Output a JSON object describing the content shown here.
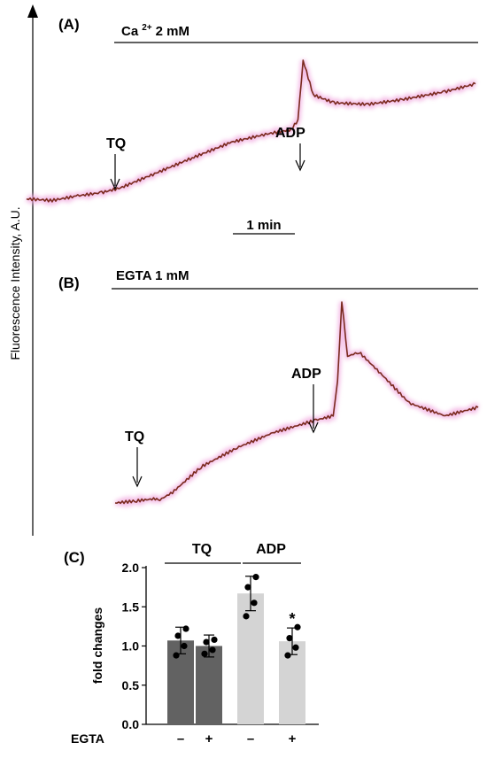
{
  "colors": {
    "trace": "#7a2a1e",
    "trace_glow": "#f1a9df",
    "bar_tq": "#626262",
    "bar_adp": "#d4d4d4",
    "axis": "#000000"
  },
  "figure": {
    "y_axis_label": "Fluorescence Intensity, A.U.",
    "panel_a": {
      "label": "(A)",
      "condition": "Ca",
      "condition_sup": "2+",
      "condition_unit": "2 mM",
      "tq_label": "TQ",
      "adp_label": "ADP",
      "scale_label": "1 min"
    },
    "panel_b": {
      "label": "(B)",
      "condition": "EGTA 1 mM",
      "tq_label": "TQ",
      "adp_label": "ADP"
    },
    "panel_c": {
      "label": "(C)",
      "group_tq": "TQ",
      "group_adp": "ADP",
      "egta_label": "EGTA",
      "significance": "*"
    }
  },
  "chart_data": [
    {
      "type": "line",
      "panel": "A",
      "title": "Ca 2+ 2 mM",
      "xlabel": "",
      "ylabel": "Fluorescence Intensity, A.U.",
      "scale_bar": "1 min",
      "annotations": [
        "TQ",
        "ADP"
      ],
      "series": [
        {
          "x": [
            0,
            0.15,
            0.3,
            0.44,
            0.55,
            0.75,
            0.97,
            1.2,
            1.4,
            1.55,
            1.59,
            1.62,
            1.68,
            1.8,
            2.0,
            2.2,
            2.45,
            2.63
          ],
          "y": [
            0.12,
            0.11,
            0.14,
            0.16,
            0.19,
            0.28,
            0.38,
            0.48,
            0.53,
            0.56,
            0.62,
            1.0,
            0.78,
            0.73,
            0.72,
            0.75,
            0.8,
            0.85
          ]
        }
      ]
    },
    {
      "type": "line",
      "panel": "B",
      "title": "EGTA 1 mM",
      "xlabel": "",
      "ylabel": "Fluorescence Intensity, A.U.",
      "annotations": [
        "TQ",
        "ADP"
      ],
      "series": [
        {
          "x": [
            0,
            0.15,
            0.28,
            0.3,
            0.4,
            0.6,
            0.85,
            1.1,
            1.4,
            1.52,
            1.55,
            1.58,
            1.62,
            1.7,
            1.85,
            2.05,
            2.3,
            2.53
          ],
          "y": [
            0.05,
            0.06,
            0.07,
            0.06,
            0.1,
            0.22,
            0.31,
            0.38,
            0.44,
            0.46,
            0.62,
            1.0,
            0.74,
            0.76,
            0.66,
            0.52,
            0.46,
            0.5
          ]
        }
      ]
    },
    {
      "type": "bar",
      "panel": "C",
      "categories": [
        "–",
        "+",
        "–",
        "+"
      ],
      "groups": [
        "TQ",
        "TQ",
        "ADP",
        "ADP"
      ],
      "xlabel": "EGTA",
      "ylabel": "fold changes",
      "ylim": [
        0,
        2.0
      ],
      "yticks": [
        "0.0",
        "0.5",
        "1.0",
        "1.5",
        "2.0"
      ],
      "values": [
        1.07,
        1.0,
        1.67,
        1.06
      ],
      "errors": [
        0.17,
        0.14,
        0.22,
        0.17
      ],
      "points": [
        [
          0.88,
          1.0,
          1.13,
          1.22
        ],
        [
          0.9,
          0.95,
          1.05,
          1.08
        ],
        [
          1.38,
          1.55,
          1.75,
          1.88
        ],
        [
          0.88,
          0.98,
          1.1,
          1.24
        ]
      ],
      "significance": [
        null,
        null,
        null,
        "*"
      ]
    }
  ]
}
